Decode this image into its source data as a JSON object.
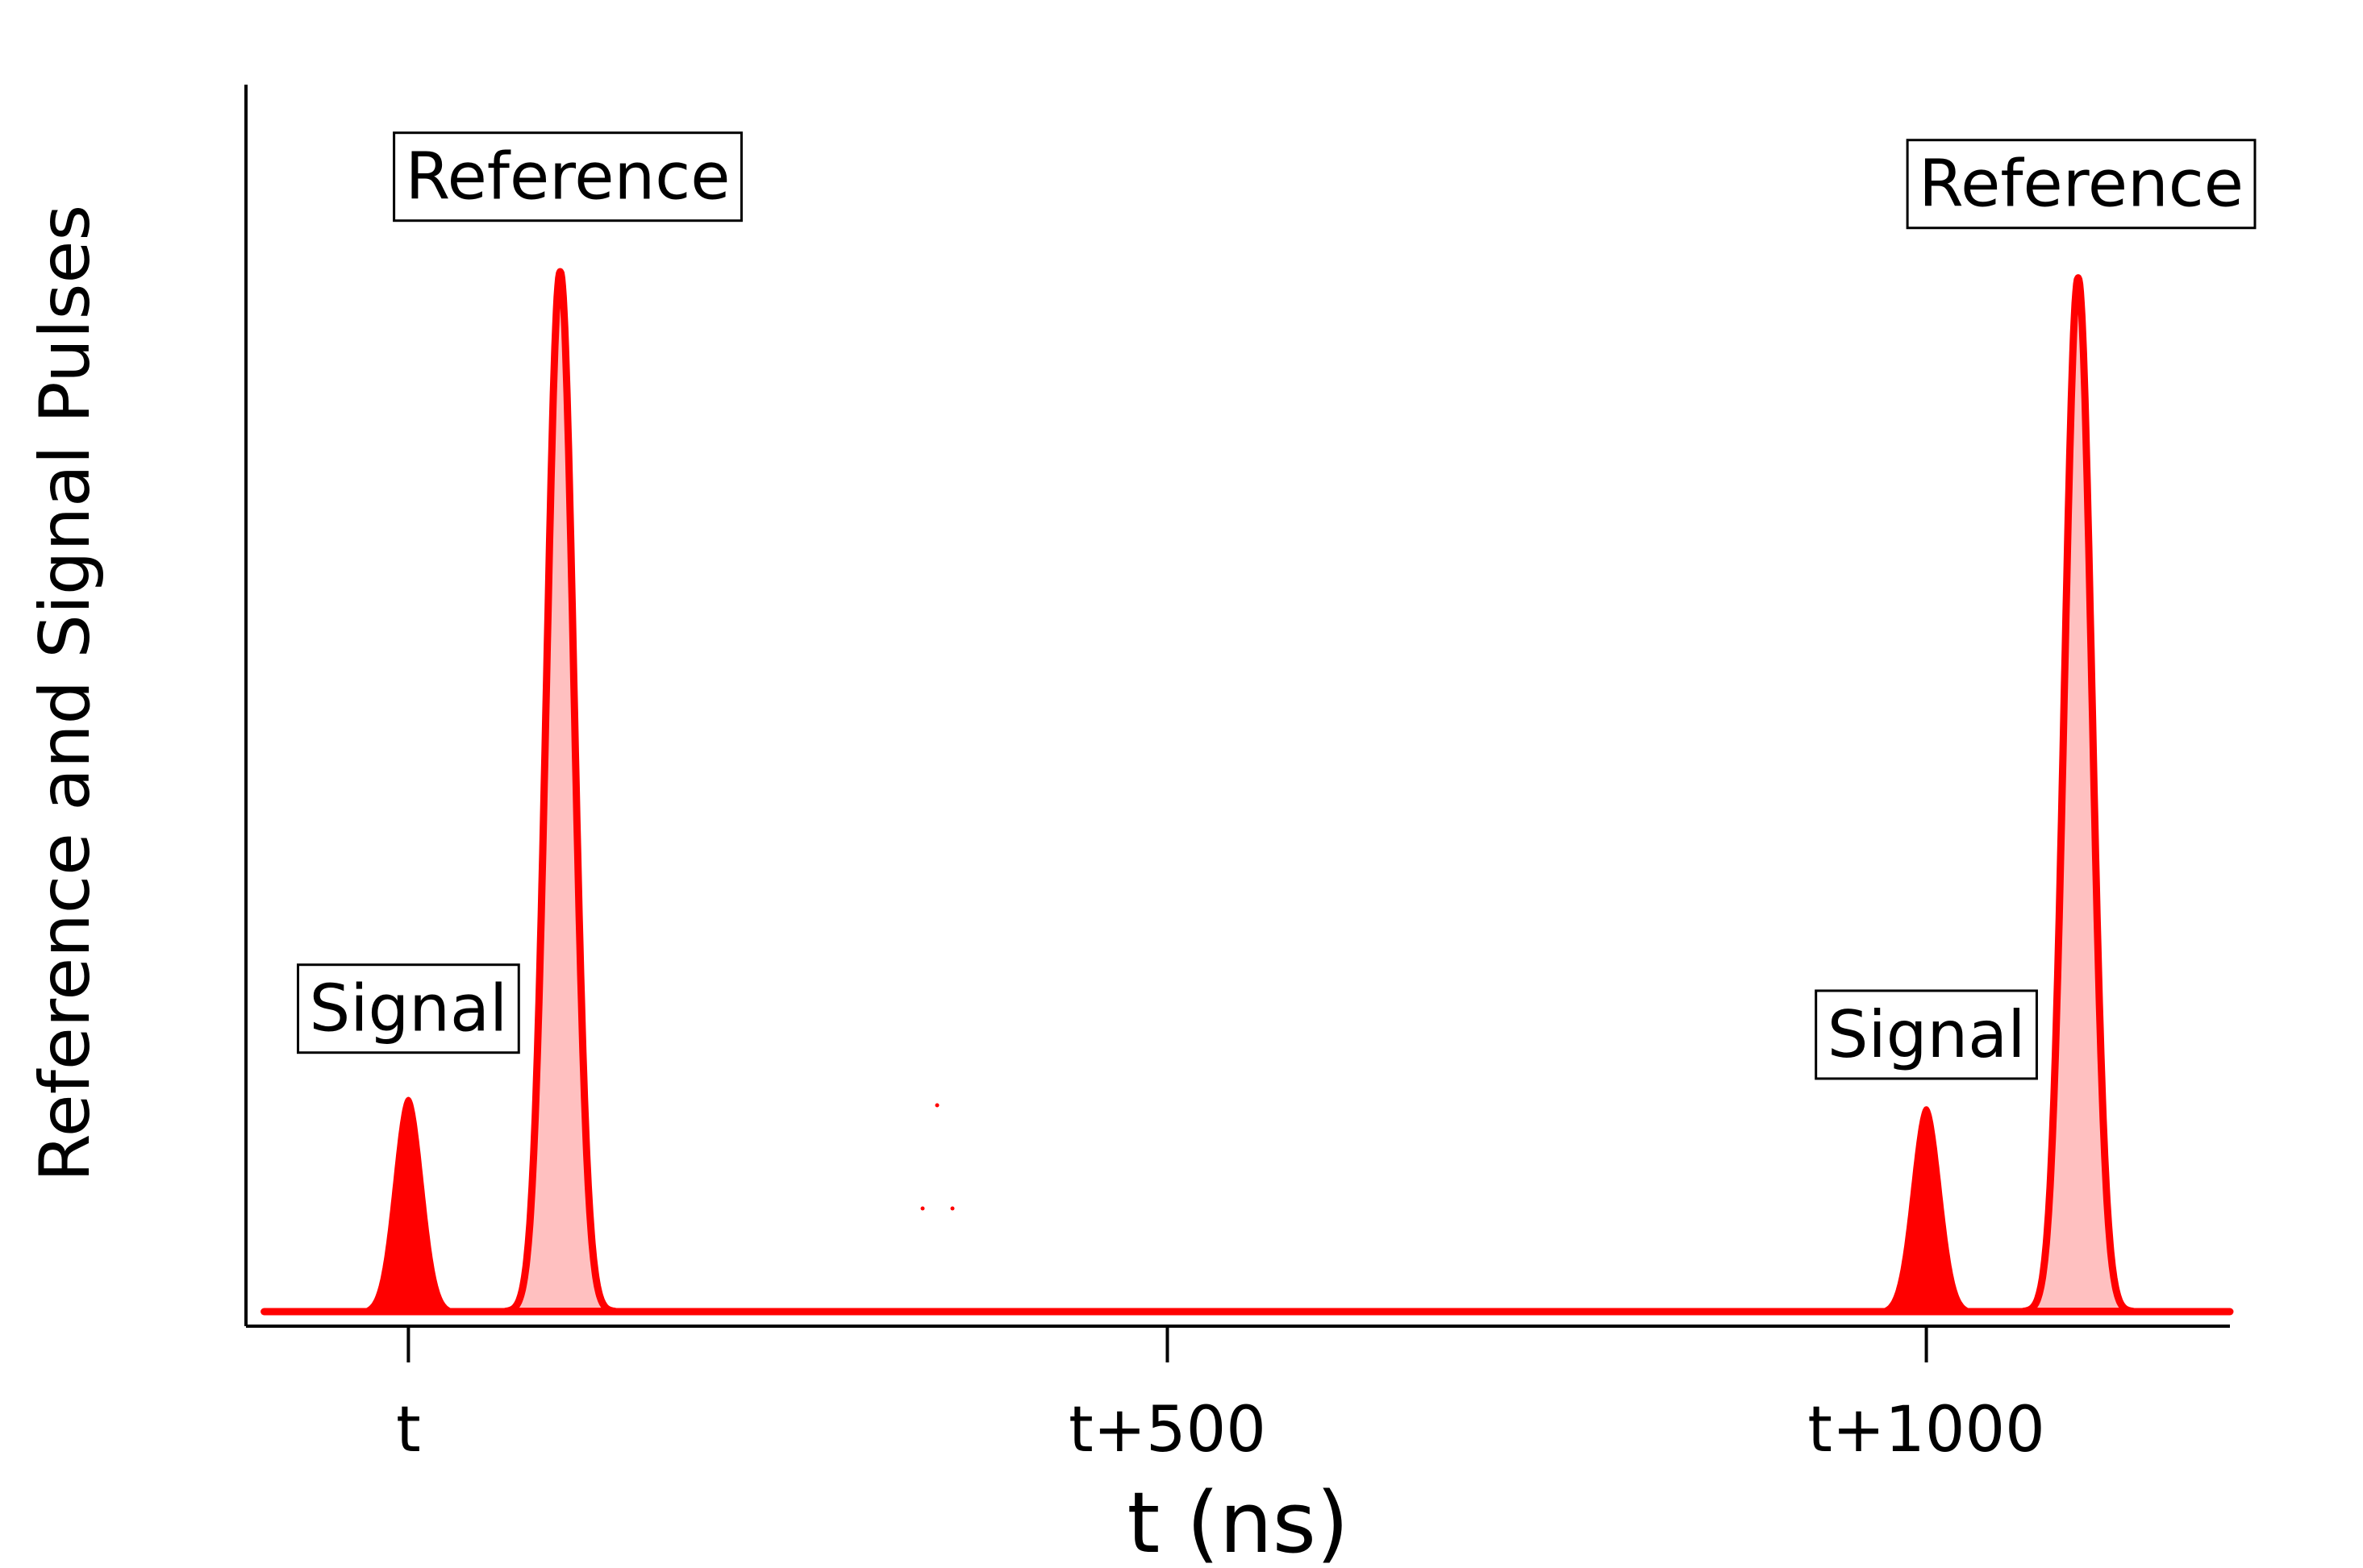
{
  "chart_data": {
    "type": "area",
    "title": "",
    "xlabel": "t (ns)",
    "ylabel": "Reference and Signal Pulses",
    "xlim": [
      -107,
      1200
    ],
    "ylim": [
      0,
      1.05
    ],
    "xticks": [
      {
        "value": 0,
        "label": "t"
      },
      {
        "value": 500,
        "label": "t+500"
      },
      {
        "value": 1000,
        "label": "t+1000"
      }
    ],
    "grid": false,
    "series": [
      {
        "name": "Signal",
        "style": "filled-solid",
        "color": "#ff0000",
        "fill": "#ff0000",
        "pulses": [
          {
            "center": 0,
            "height": 0.205,
            "sigma": 9
          },
          {
            "center": 1000,
            "height": 0.196,
            "sigma": 9
          }
        ]
      },
      {
        "name": "Reference",
        "style": "filled-light",
        "color": "#ff0000",
        "fill": "#ffc0c0",
        "pulses": [
          {
            "center": 100,
            "height": 1.0,
            "sigma": 9
          },
          {
            "center": 1100,
            "height": 0.994,
            "sigma": 9
          }
        ]
      }
    ],
    "annotations": [
      {
        "text": "Reference",
        "x": 105,
        "y": 1.07
      },
      {
        "text": "Signal",
        "x": 0,
        "y": 0.27
      },
      {
        "text": "Reference",
        "x": 1102,
        "y": 1.063
      },
      {
        "text": "Signal",
        "x": 1000,
        "y": 0.245
      }
    ]
  }
}
